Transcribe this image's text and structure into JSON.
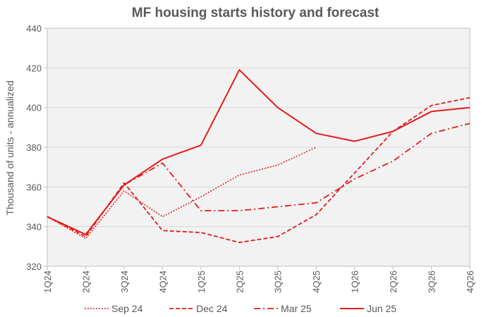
{
  "chart_data": {
    "type": "line",
    "title": "MF housing starts history and forecast",
    "xlabel": "",
    "ylabel": "Thousand of units - annualized",
    "categories": [
      "1Q24",
      "2Q24",
      "3Q24",
      "4Q24",
      "1Q25",
      "2Q25",
      "3Q25",
      "4Q25",
      "1Q26",
      "2Q26",
      "3Q26",
      "4Q26"
    ],
    "yticks": [
      320,
      340,
      360,
      380,
      400,
      420,
      440
    ],
    "ylim": [
      320,
      440
    ],
    "grid": true,
    "legend_position": "bottom",
    "series": [
      {
        "name": "Sep 24",
        "style": "dotted",
        "color": "#e31a1c",
        "values": [
          345,
          334,
          358,
          345,
          355,
          366,
          371,
          380,
          null,
          null,
          null,
          null
        ]
      },
      {
        "name": "Dec 24",
        "style": "dashed",
        "color": "#e31a1c",
        "values": [
          345,
          335,
          362,
          338,
          337,
          332,
          335,
          346,
          367,
          388,
          401,
          405
        ]
      },
      {
        "name": "Mar 25",
        "style": "dashdot",
        "color": "#e31a1c",
        "values": [
          345,
          336,
          361,
          372,
          348,
          348,
          350,
          352,
          364,
          373,
          387,
          392
        ]
      },
      {
        "name": "Jun 25",
        "style": "solid",
        "color": "#e31a1c",
        "values": [
          345,
          336,
          361,
          374,
          381,
          419,
          400,
          387,
          383,
          388,
          398,
          400
        ]
      }
    ]
  }
}
